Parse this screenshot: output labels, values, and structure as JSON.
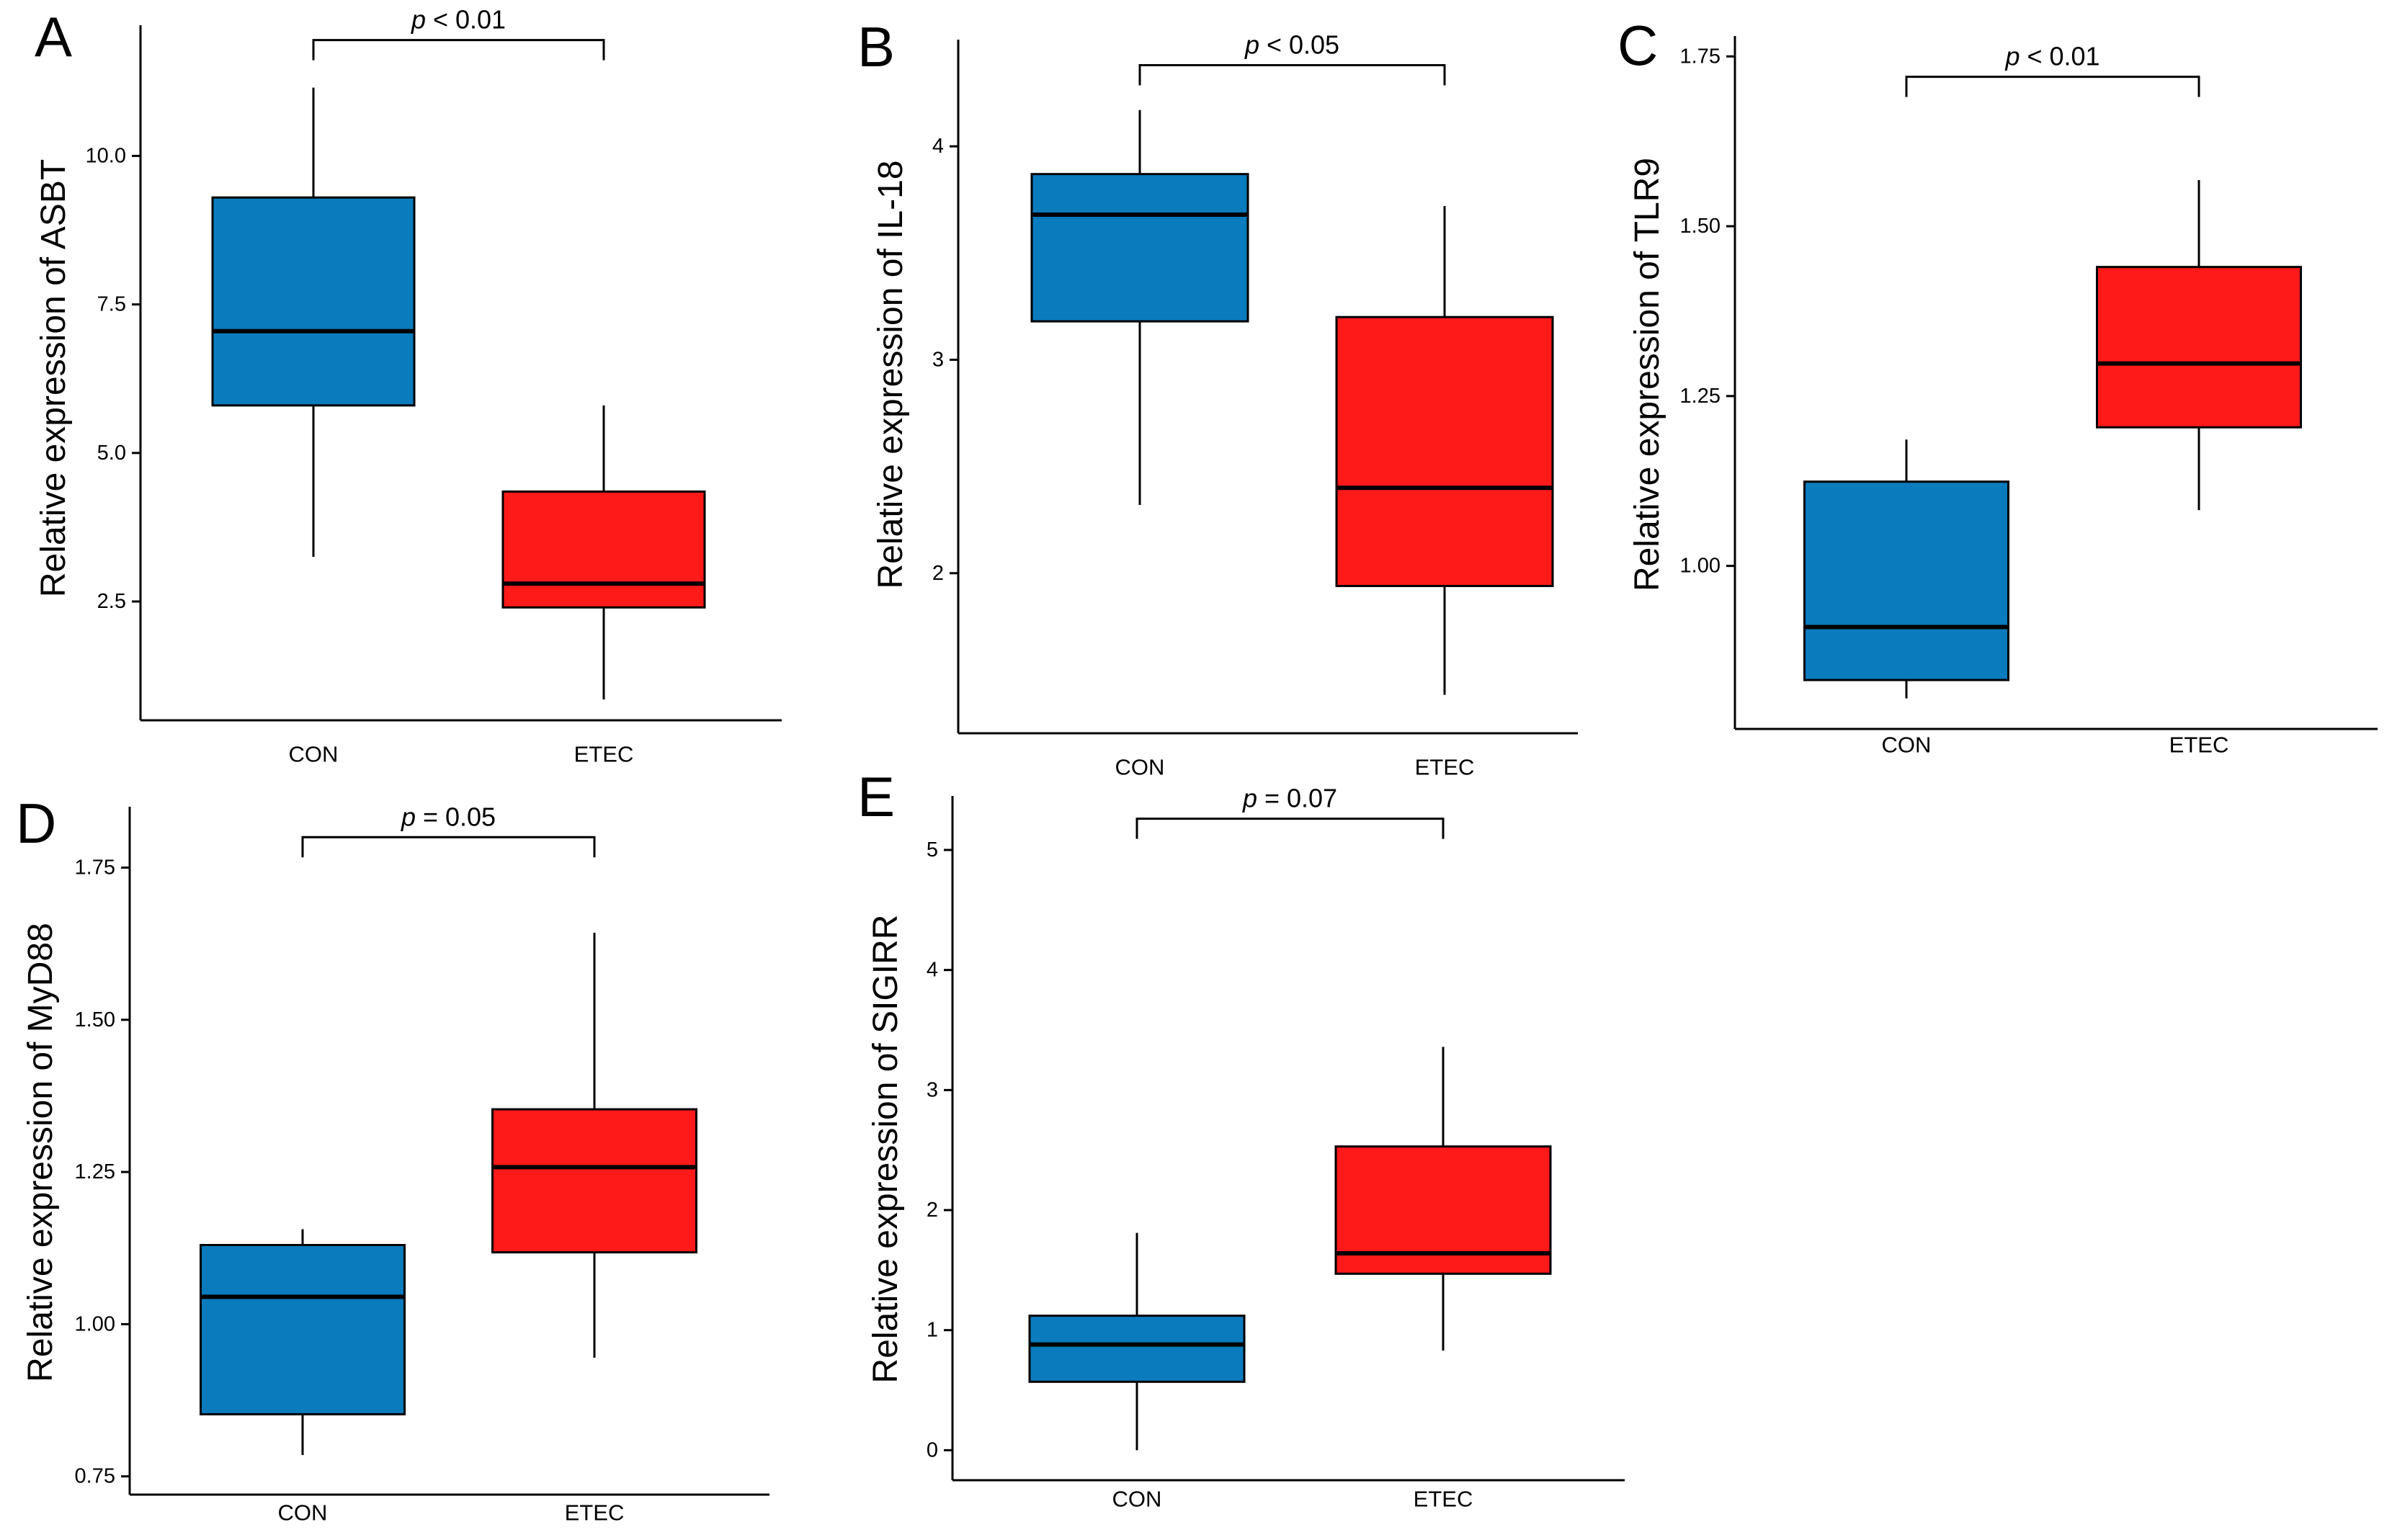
{
  "colors": {
    "CON": "#0A7BBD",
    "ETEC": "#FF1A1A",
    "axis": "#000000"
  },
  "chart_data": [
    {
      "type": "boxplot",
      "panel": "A",
      "ylabel": "Relative expression of ASBT",
      "xlabel": "",
      "ylim": [
        0.5,
        12.2
      ],
      "yticks": [
        2.5,
        5.0,
        7.5,
        10.0
      ],
      "ytick_labels": [
        "2.5",
        "5.0",
        "7.5",
        "10.0"
      ],
      "categories": [
        "CON",
        "ETEC"
      ],
      "boxes": [
        {
          "name": "CON",
          "min": 3.25,
          "q1": 5.8,
          "median": 7.05,
          "q3": 9.3,
          "max": 11.15
        },
        {
          "name": "ETEC",
          "min": 0.85,
          "q1": 2.4,
          "median": 2.8,
          "q3": 4.35,
          "max": 5.8
        }
      ],
      "annotation": {
        "prefix": "p",
        "text": " < 0.01",
        "y": 11.95
      }
    },
    {
      "type": "boxplot",
      "panel": "B",
      "ylabel": "Relative expression of IL-18",
      "xlabel": "",
      "ylim": [
        1.25,
        4.5
      ],
      "yticks": [
        2,
        3,
        4
      ],
      "ytick_labels": [
        "2",
        "3",
        "4"
      ],
      "categories": [
        "CON",
        "ETEC"
      ],
      "boxes": [
        {
          "name": "CON",
          "min": 2.32,
          "q1": 3.18,
          "median": 3.68,
          "q3": 3.87,
          "max": 4.17
        },
        {
          "name": "ETEC",
          "min": 1.43,
          "q1": 1.94,
          "median": 2.4,
          "q3": 3.2,
          "max": 3.72
        }
      ],
      "annotation": {
        "prefix": "p",
        "text": " < 0.05",
        "y": 4.38
      }
    },
    {
      "type": "boxplot",
      "panel": "C",
      "ylabel": "Relative expression of TLR9",
      "xlabel": "",
      "ylim": [
        0.76,
        1.78
      ],
      "yticks": [
        1.0,
        1.25,
        1.5,
        1.75
      ],
      "ytick_labels": [
        "1.00",
        "1.25",
        "1.50",
        "1.75"
      ],
      "categories": [
        "CON",
        "ETEC"
      ],
      "boxes": [
        {
          "name": "CON",
          "min": 0.805,
          "q1": 0.832,
          "median": 0.91,
          "q3": 1.124,
          "max": 1.186
        },
        {
          "name": "ETEC",
          "min": 1.082,
          "q1": 1.204,
          "median": 1.298,
          "q3": 1.44,
          "max": 1.568
        }
      ],
      "annotation": {
        "prefix": "p",
        "text": " < 0.01",
        "y": 1.72
      }
    },
    {
      "type": "boxplot",
      "panel": "D",
      "ylabel": "Relative expression of MyD88",
      "xlabel": "",
      "ylim": [
        0.72,
        1.85
      ],
      "yticks": [
        0.75,
        1.0,
        1.25,
        1.5,
        1.75
      ],
      "ytick_labels": [
        "0.75",
        "1.00",
        "1.25",
        "1.50",
        "1.75"
      ],
      "categories": [
        "CON",
        "ETEC"
      ],
      "boxes": [
        {
          "name": "CON",
          "min": 0.785,
          "q1": 0.852,
          "median": 1.045,
          "q3": 1.13,
          "max": 1.156
        },
        {
          "name": "ETEC",
          "min": 0.945,
          "q1": 1.118,
          "median": 1.258,
          "q3": 1.353,
          "max": 1.643
        }
      ],
      "annotation": {
        "prefix": "p",
        "text": " = 0.05",
        "y": 1.8
      }
    },
    {
      "type": "boxplot",
      "panel": "E",
      "ylabel": "Relative expression of SIGIRR",
      "xlabel": "",
      "ylim": [
        -0.25,
        5.45
      ],
      "yticks": [
        0,
        1,
        2,
        3,
        4,
        5
      ],
      "ytick_labels": [
        "0",
        "1",
        "2",
        "3",
        "4",
        "5"
      ],
      "categories": [
        "CON",
        "ETEC"
      ],
      "boxes": [
        {
          "name": "CON",
          "min": 0.0,
          "q1": 0.57,
          "median": 0.88,
          "q3": 1.12,
          "max": 1.81
        },
        {
          "name": "ETEC",
          "min": 0.83,
          "q1": 1.47,
          "median": 1.64,
          "q3": 2.53,
          "max": 3.36
        }
      ],
      "annotation": {
        "prefix": "p",
        "text": " = 0.07",
        "y": 5.26
      }
    }
  ]
}
